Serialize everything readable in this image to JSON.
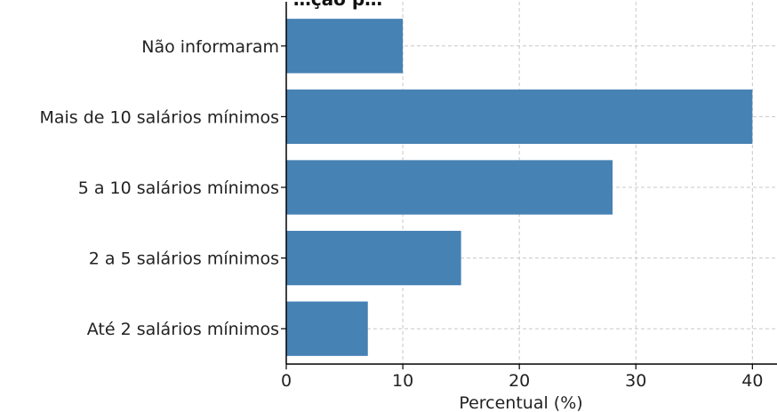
{
  "chart_data": {
    "type": "bar",
    "orientation": "horizontal",
    "title": "…ção p…",
    "xlabel": "Percentual (%)",
    "ylabel": "",
    "categories": [
      "Até 2 salários mínimos",
      "2 a 5 salários mínimos",
      "5 a 10 salários mínimos",
      "Mais de 10 salários mínimos",
      "Não informaram"
    ],
    "values": [
      7,
      15,
      28,
      40,
      10
    ],
    "xlim": [
      0,
      41.5
    ],
    "xticks": [
      0,
      10,
      20,
      30,
      40
    ],
    "grid": true,
    "bar_color": "#4682b4",
    "grid_color": "#c8c8c8"
  }
}
